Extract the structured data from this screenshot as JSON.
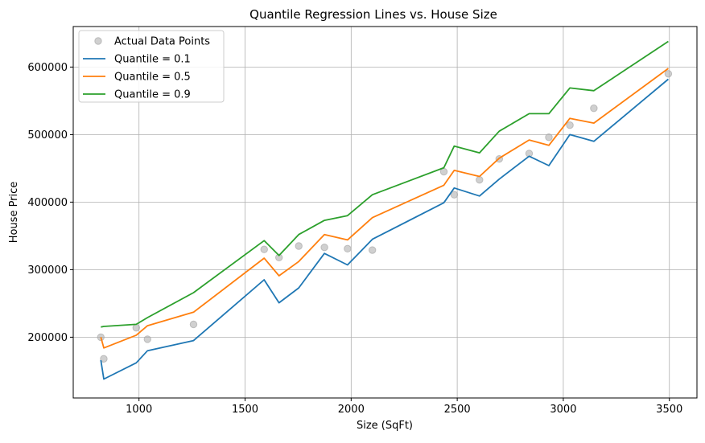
{
  "chart_data": {
    "type": "line",
    "title": "Quantile Regression Lines vs. House Size",
    "xlabel": "Size (SqFt)",
    "ylabel": "House Price",
    "xlim": [
      690,
      3630
    ],
    "ylim": [
      110000,
      660000
    ],
    "xticks": [
      1000,
      1500,
      2000,
      2500,
      3000,
      3500
    ],
    "yticks": [
      200000,
      300000,
      400000,
      500000,
      600000
    ],
    "grid": true,
    "legend_position": "top-left",
    "scatter": {
      "name": "Actual Data Points",
      "color": "#a9a9a9",
      "points": [
        [
          820,
          200000
        ],
        [
          834,
          168000
        ],
        [
          987,
          214000
        ],
        [
          1040,
          197000
        ],
        [
          1257,
          219000
        ],
        [
          1590,
          330000
        ],
        [
          1660,
          318000
        ],
        [
          1753,
          335000
        ],
        [
          1874,
          333000
        ],
        [
          1983,
          331000
        ],
        [
          2100,
          329000
        ],
        [
          2437,
          445000
        ],
        [
          2486,
          411000
        ],
        [
          2605,
          433000
        ],
        [
          2698,
          464000
        ],
        [
          2839,
          472000
        ],
        [
          2932,
          496000
        ],
        [
          3031,
          514000
        ],
        [
          3144,
          539000
        ],
        [
          3495,
          590000
        ]
      ]
    },
    "x": [
      820,
      834,
      987,
      1040,
      1257,
      1590,
      1660,
      1753,
      1874,
      1983,
      2100,
      2437,
      2486,
      2605,
      2698,
      2839,
      2932,
      3031,
      3144,
      3495
    ],
    "series": [
      {
        "name": "Quantile = 0.1",
        "color": "#1f77b4",
        "values": [
          166000,
          138000,
          162000,
          180000,
          195000,
          285000,
          251000,
          273000,
          324000,
          307000,
          345000,
          399000,
          421000,
          409000,
          434000,
          468000,
          454000,
          500000,
          490000,
          582000
        ]
      },
      {
        "name": "Quantile = 0.5",
        "color": "#ff7f0e",
        "values": [
          200000,
          184000,
          203000,
          217000,
          237000,
          317000,
          291000,
          312000,
          352000,
          344000,
          377000,
          425000,
          447000,
          438000,
          465000,
          492000,
          484000,
          524000,
          517000,
          598000
        ]
      },
      {
        "name": "Quantile = 0.9",
        "color": "#2ca02c",
        "values": [
          215000,
          216000,
          219000,
          229000,
          266000,
          343000,
          321000,
          352000,
          373000,
          380000,
          411000,
          451000,
          483000,
          473000,
          505000,
          531000,
          531000,
          569000,
          565000,
          638000
        ]
      }
    ]
  }
}
